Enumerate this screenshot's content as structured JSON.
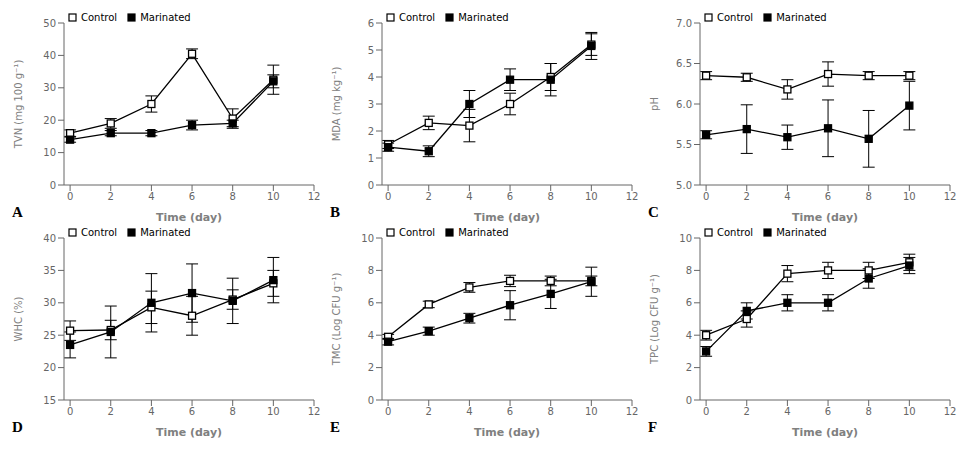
{
  "chart_data": [
    {
      "type": "line",
      "annotation": "A",
      "xlabel": "Time (day)",
      "ylabel": "TVN (mg 100 g⁻¹)",
      "x": [
        0,
        2,
        4,
        6,
        8,
        10
      ],
      "xlim": [
        -0.3,
        12
      ],
      "xticks": [
        0,
        2,
        4,
        6,
        8,
        10,
        12
      ],
      "ylim": [
        0,
        50
      ],
      "yticks": [
        0,
        10,
        20,
        30,
        40,
        50
      ],
      "grid": false,
      "legend": "upper left",
      "series": [
        {
          "name": "Control",
          "color": "#000000",
          "marker": "square_open",
          "values": [
            16.0,
            19.0,
            25.0,
            40.5,
            20.5,
            32.5
          ],
          "errors": [
            1.0,
            1.5,
            2.5,
            1.5,
            3.0,
            4.5
          ]
        },
        {
          "name": "Marinated",
          "color": "#000000",
          "marker": "square",
          "values": [
            14.0,
            16.0,
            16.0,
            18.5,
            19.0,
            32.0
          ],
          "errors": [
            0.8,
            0.8,
            0.8,
            1.5,
            1.0,
            2.0
          ]
        }
      ]
    },
    {
      "type": "line",
      "annotation": "B",
      "xlabel": "Time (day)",
      "ylabel": "MDA (mg kg⁻¹)",
      "x": [
        0,
        2,
        4,
        6,
        8,
        10
      ],
      "xlim": [
        -0.3,
        12
      ],
      "xticks": [
        0,
        2,
        4,
        6,
        8,
        10,
        12
      ],
      "ylim": [
        0,
        6
      ],
      "yticks": [
        0,
        1,
        2,
        3,
        4,
        5,
        6
      ],
      "grid": false,
      "legend": "upper left",
      "series": [
        {
          "name": "Control",
          "color": "#000000",
          "marker": "square_open",
          "values": [
            1.5,
            2.3,
            2.2,
            3.0,
            4.0,
            5.2
          ],
          "errors": [
            0.15,
            0.25,
            0.6,
            0.4,
            0.5,
            0.4
          ]
        },
        {
          "name": "Marinated",
          "color": "#000000",
          "marker": "square",
          "values": [
            1.4,
            1.25,
            3.0,
            3.9,
            3.9,
            5.15
          ],
          "errors": [
            0.15,
            0.2,
            0.5,
            0.4,
            0.6,
            0.5
          ]
        }
      ]
    },
    {
      "type": "line",
      "annotation": "C",
      "xlabel": "Time (day)",
      "ylabel": "pH",
      "x": [
        0,
        2,
        4,
        6,
        8,
        10
      ],
      "xlim": [
        -0.3,
        12
      ],
      "xticks": [
        0,
        2,
        4,
        6,
        8,
        10,
        12
      ],
      "ylim": [
        5,
        7
      ],
      "yticks": [
        {
          "value": 5,
          "label": "5.0"
        },
        5.5,
        {
          "value": 6,
          "label": "6.0"
        },
        6.5,
        {
          "value": 7,
          "label": "7.0"
        }
      ],
      "grid": false,
      "legend": "upper left",
      "series": [
        {
          "name": "Control",
          "color": "#000000",
          "marker": "square_open",
          "values": [
            6.35,
            6.33,
            6.18,
            6.37,
            6.35,
            6.35
          ],
          "errors": [
            0.05,
            0.05,
            0.12,
            0.15,
            0.05,
            0.05
          ]
        },
        {
          "name": "Marinated",
          "color": "#000000",
          "marker": "square",
          "values": [
            5.62,
            5.69,
            5.59,
            5.7,
            5.57,
            5.98
          ],
          "errors": [
            0.05,
            0.3,
            0.15,
            0.35,
            0.35,
            0.3
          ]
        }
      ]
    },
    {
      "type": "line",
      "annotation": "D",
      "xlabel": "Time (day)",
      "ylabel": "WHC (%)",
      "x": [
        0,
        2,
        4,
        6,
        8,
        10
      ],
      "xlim": [
        -0.3,
        12
      ],
      "xticks": [
        0,
        2,
        4,
        6,
        8,
        10,
        12
      ],
      "ylim": [
        15,
        40
      ],
      "yticks": [
        15,
        20,
        25,
        30,
        35,
        40
      ],
      "grid": false,
      "legend": "upper left",
      "series": [
        {
          "name": "Control",
          "color": "#000000",
          "marker": "square_open",
          "values": [
            25.7,
            25.8,
            29.3,
            28.0,
            30.5,
            33.0
          ],
          "errors": [
            1.5,
            1.5,
            2.5,
            3.0,
            1.5,
            2.0
          ]
        },
        {
          "name": "Marinated",
          "color": "#000000",
          "marker": "square",
          "values": [
            23.5,
            25.5,
            30.0,
            31.5,
            30.3,
            33.5
          ],
          "errors": [
            2.0,
            4.0,
            4.5,
            4.5,
            3.5,
            3.5
          ]
        }
      ]
    },
    {
      "type": "line",
      "annotation": "E",
      "xlabel": "Time (day)",
      "ylabel": "TMC (Log CFU g⁻¹)",
      "x": [
        0,
        2,
        4,
        6,
        8,
        10
      ],
      "xlim": [
        -0.3,
        12
      ],
      "xticks": [
        0,
        2,
        4,
        6,
        8,
        10,
        12
      ],
      "ylim": [
        0,
        10
      ],
      "yticks": [
        0,
        2,
        4,
        6,
        8,
        10
      ],
      "grid": false,
      "legend": "upper left",
      "series": [
        {
          "name": "Control",
          "color": "#000000",
          "marker": "square_open",
          "values": [
            3.9,
            5.9,
            6.95,
            7.35,
            7.35,
            7.35
          ],
          "errors": [
            0.15,
            0.2,
            0.3,
            0.35,
            0.3,
            0.3
          ]
        },
        {
          "name": "Marinated",
          "color": "#000000",
          "marker": "square",
          "values": [
            3.6,
            4.25,
            5.05,
            5.85,
            6.55,
            7.3
          ],
          "errors": [
            0.2,
            0.25,
            0.3,
            0.9,
            0.9,
            0.9
          ]
        }
      ]
    },
    {
      "type": "line",
      "annotation": "F",
      "xlabel": "Time (day)",
      "ylabel": "TPC (Log CFU g⁻¹)",
      "x": [
        0,
        2,
        4,
        6,
        8,
        10
      ],
      "xlim": [
        -0.3,
        12
      ],
      "xticks": [
        0,
        2,
        4,
        6,
        8,
        10,
        12
      ],
      "ylim": [
        0,
        10
      ],
      "yticks": [
        0,
        2,
        4,
        6,
        8,
        10
      ],
      "grid": false,
      "legend": "upper left",
      "series": [
        {
          "name": "Control",
          "color": "#000000",
          "marker": "square_open",
          "values": [
            4.0,
            5.0,
            7.8,
            8.0,
            8.0,
            8.5
          ],
          "errors": [
            0.3,
            0.5,
            0.5,
            0.5,
            0.5,
            0.5
          ]
        },
        {
          "name": "Marinated",
          "color": "#000000",
          "marker": "square",
          "values": [
            3.0,
            5.5,
            6.0,
            6.0,
            7.5,
            8.3
          ],
          "errors": [
            0.3,
            0.5,
            0.5,
            0.5,
            0.6,
            0.5
          ]
        }
      ]
    }
  ]
}
